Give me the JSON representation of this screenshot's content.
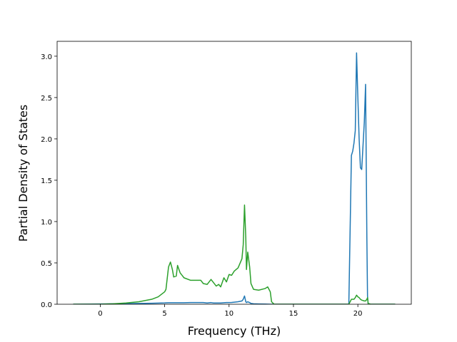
{
  "chart_data": {
    "type": "line",
    "xlabel": "Frequency (THz)",
    "ylabel": "Partial Density of States",
    "x": [
      -2.1,
      0,
      1,
      2,
      3,
      4,
      4.5,
      5,
      5.1,
      5.3,
      5.45,
      5.6,
      5.7,
      5.9,
      6.0,
      6.2,
      6.5,
      7,
      7.5,
      7.8,
      8,
      8.3,
      8.6,
      8.8,
      9,
      9.2,
      9.35,
      9.6,
      9.8,
      10,
      10.2,
      10.4,
      10.7,
      11,
      11.1,
      11.2,
      11.3,
      11.35,
      11.45,
      11.6,
      11.7,
      11.9,
      12.3,
      12.8,
      13.0,
      13.2,
      13.3,
      13.5,
      19.3,
      19.5,
      19.6,
      19.7,
      19.8,
      19.9,
      20.0,
      20.1,
      20.2,
      20.3,
      20.5,
      20.6,
      20.7,
      20.75,
      20.8,
      21,
      22.9
    ],
    "series": [
      {
        "color": "#1f77b4",
        "values": [
          0,
          0.003,
          0.005,
          0.008,
          0.01,
          0.012,
          0.014,
          0.016,
          0.017,
          0.018,
          0.018,
          0.018,
          0.018,
          0.018,
          0.018,
          0.018,
          0.018,
          0.02,
          0.02,
          0.02,
          0.02,
          0.015,
          0.02,
          0.015,
          0.015,
          0.015,
          0.015,
          0.018,
          0.02,
          0.02,
          0.022,
          0.025,
          0.03,
          0.04,
          0.06,
          0.1,
          0.03,
          0.02,
          0.03,
          0.02,
          0.01,
          0.005,
          0.003,
          0.002,
          0.001,
          0,
          0,
          0,
          0,
          1.8,
          1.85,
          1.95,
          2.1,
          3.04,
          2.5,
          2.0,
          1.65,
          1.63,
          2.2,
          2.66,
          0.8,
          0.1,
          0,
          0,
          0
        ]
      },
      {
        "color": "#2ca02c",
        "values": [
          0,
          0,
          0.005,
          0.015,
          0.03,
          0.06,
          0.09,
          0.15,
          0.18,
          0.45,
          0.51,
          0.42,
          0.33,
          0.34,
          0.47,
          0.38,
          0.32,
          0.29,
          0.29,
          0.29,
          0.25,
          0.24,
          0.3,
          0.26,
          0.22,
          0.24,
          0.21,
          0.32,
          0.27,
          0.36,
          0.35,
          0.4,
          0.44,
          0.55,
          0.72,
          1.2,
          0.8,
          0.42,
          0.63,
          0.45,
          0.25,
          0.18,
          0.17,
          0.19,
          0.21,
          0.15,
          0.03,
          0,
          0,
          0.06,
          0.06,
          0.06,
          0.08,
          0.11,
          0.09,
          0.08,
          0.06,
          0.05,
          0.04,
          0.04,
          0.06,
          0.08,
          0.01,
          0,
          0
        ]
      }
    ],
    "xlim": [
      -3.35,
      24.15
    ],
    "xticks": [
      0,
      5,
      10,
      15,
      20
    ],
    "ylim": [
      0,
      3.18
    ],
    "yticks": [
      {
        "value": 0,
        "label": "0.0"
      },
      0.5,
      {
        "value": 1,
        "label": "1.0"
      },
      1.5,
      {
        "value": 2,
        "label": "2.0"
      },
      2.5,
      {
        "value": 3,
        "label": "3.0"
      }
    ]
  }
}
